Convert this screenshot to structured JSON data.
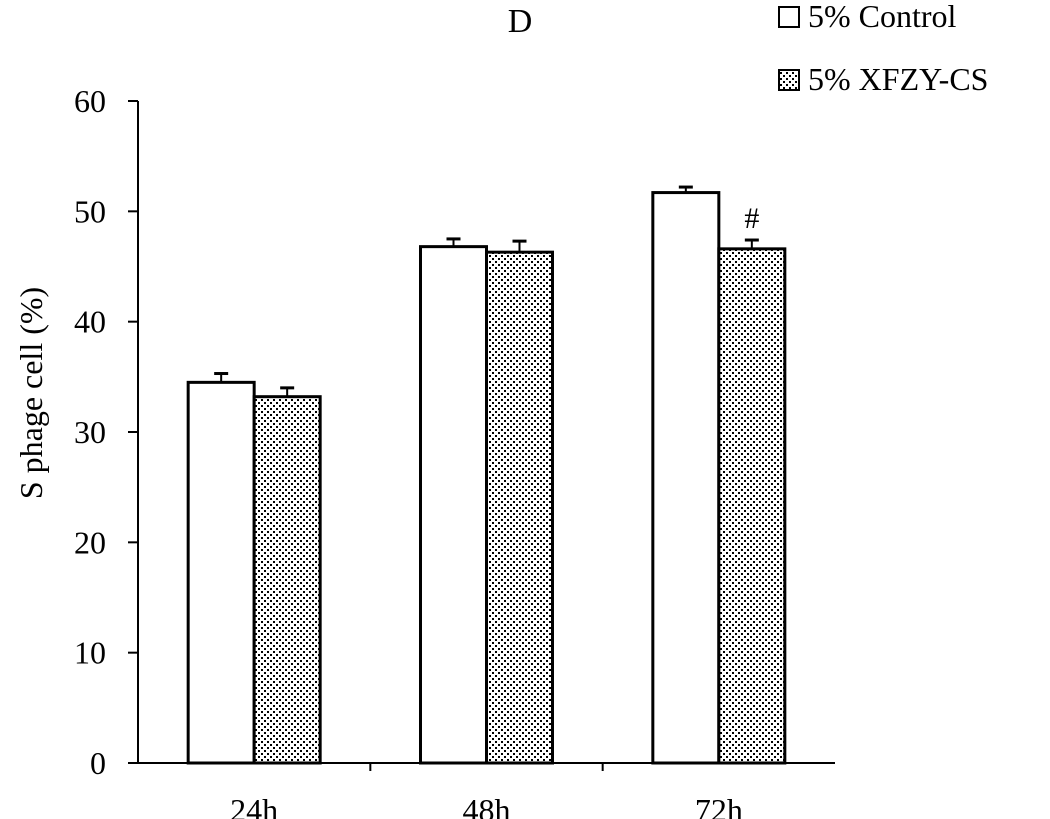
{
  "chart_data": {
    "type": "bar",
    "title": "D",
    "xlabel": "",
    "ylabel": "S phage cell (%)",
    "categories": [
      "24h",
      "48h",
      "72h"
    ],
    "ylim": [
      0,
      60
    ],
    "yticks": [
      0,
      10,
      20,
      30,
      40,
      50,
      60
    ],
    "grid": false,
    "legend_position": "top-right",
    "series": [
      {
        "name": "5% Control",
        "values": [
          34.5,
          46.8,
          51.7
        ],
        "errors": [
          0.8,
          0.7,
          0.5
        ],
        "fill": "#ffffff",
        "pattern": "none"
      },
      {
        "name": "5% XFZY-CS",
        "values": [
          33.2,
          46.3,
          46.6
        ],
        "errors": [
          0.8,
          1.0,
          0.8
        ],
        "fill": "#ffffff",
        "pattern": "dotted"
      }
    ],
    "annotations": [
      {
        "text": "#",
        "category": "72h",
        "series": 1
      }
    ]
  }
}
